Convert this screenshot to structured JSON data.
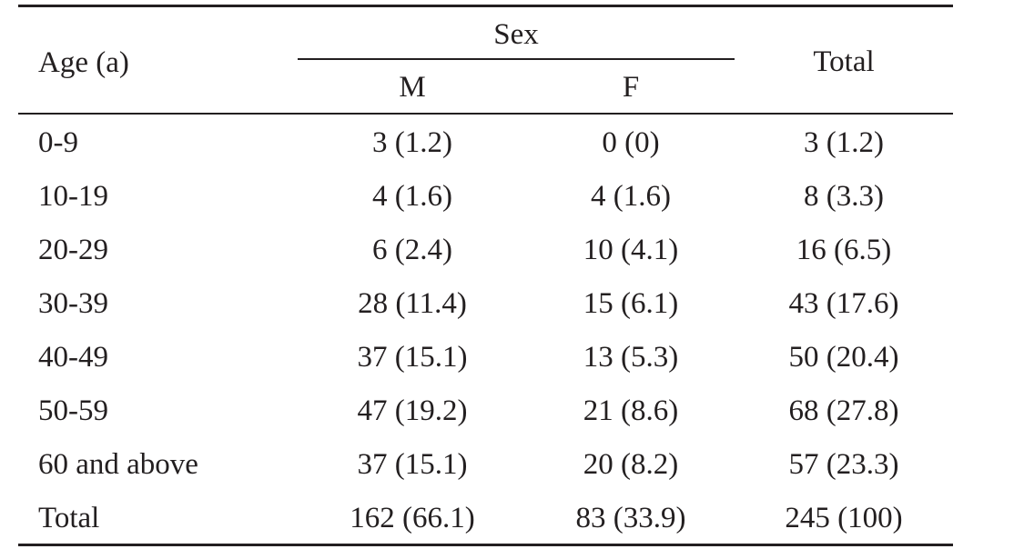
{
  "table": {
    "headers": {
      "age": "Age (a)",
      "sex": "Sex",
      "male": "M",
      "female": "F",
      "total": "Total"
    },
    "rows": [
      {
        "age": "0-9",
        "m": "3 (1.2)",
        "f": "0 (0)",
        "total": "3 (1.2)"
      },
      {
        "age": "10-19",
        "m": "4 (1.6)",
        "f": "4 (1.6)",
        "total": "8 (3.3)"
      },
      {
        "age": "20-29",
        "m": "6 (2.4)",
        "f": "10 (4.1)",
        "total": "16 (6.5)"
      },
      {
        "age": "30-39",
        "m": "28 (11.4)",
        "f": "15 (6.1)",
        "total": "43 (17.6)"
      },
      {
        "age": "40-49",
        "m": "37 (15.1)",
        "f": "13 (5.3)",
        "total": "50 (20.4)"
      },
      {
        "age": "50-59",
        "m": "47 (19.2)",
        "f": "21 (8.6)",
        "total": "68 (27.8)"
      },
      {
        "age": "60 and above",
        "m": "37 (15.1)",
        "f": "20 (8.2)",
        "total": "57 (23.3)"
      },
      {
        "age": "Total",
        "m": "162 (66.1)",
        "f": "83 (33.9)",
        "total": "245 (100)"
      }
    ]
  }
}
